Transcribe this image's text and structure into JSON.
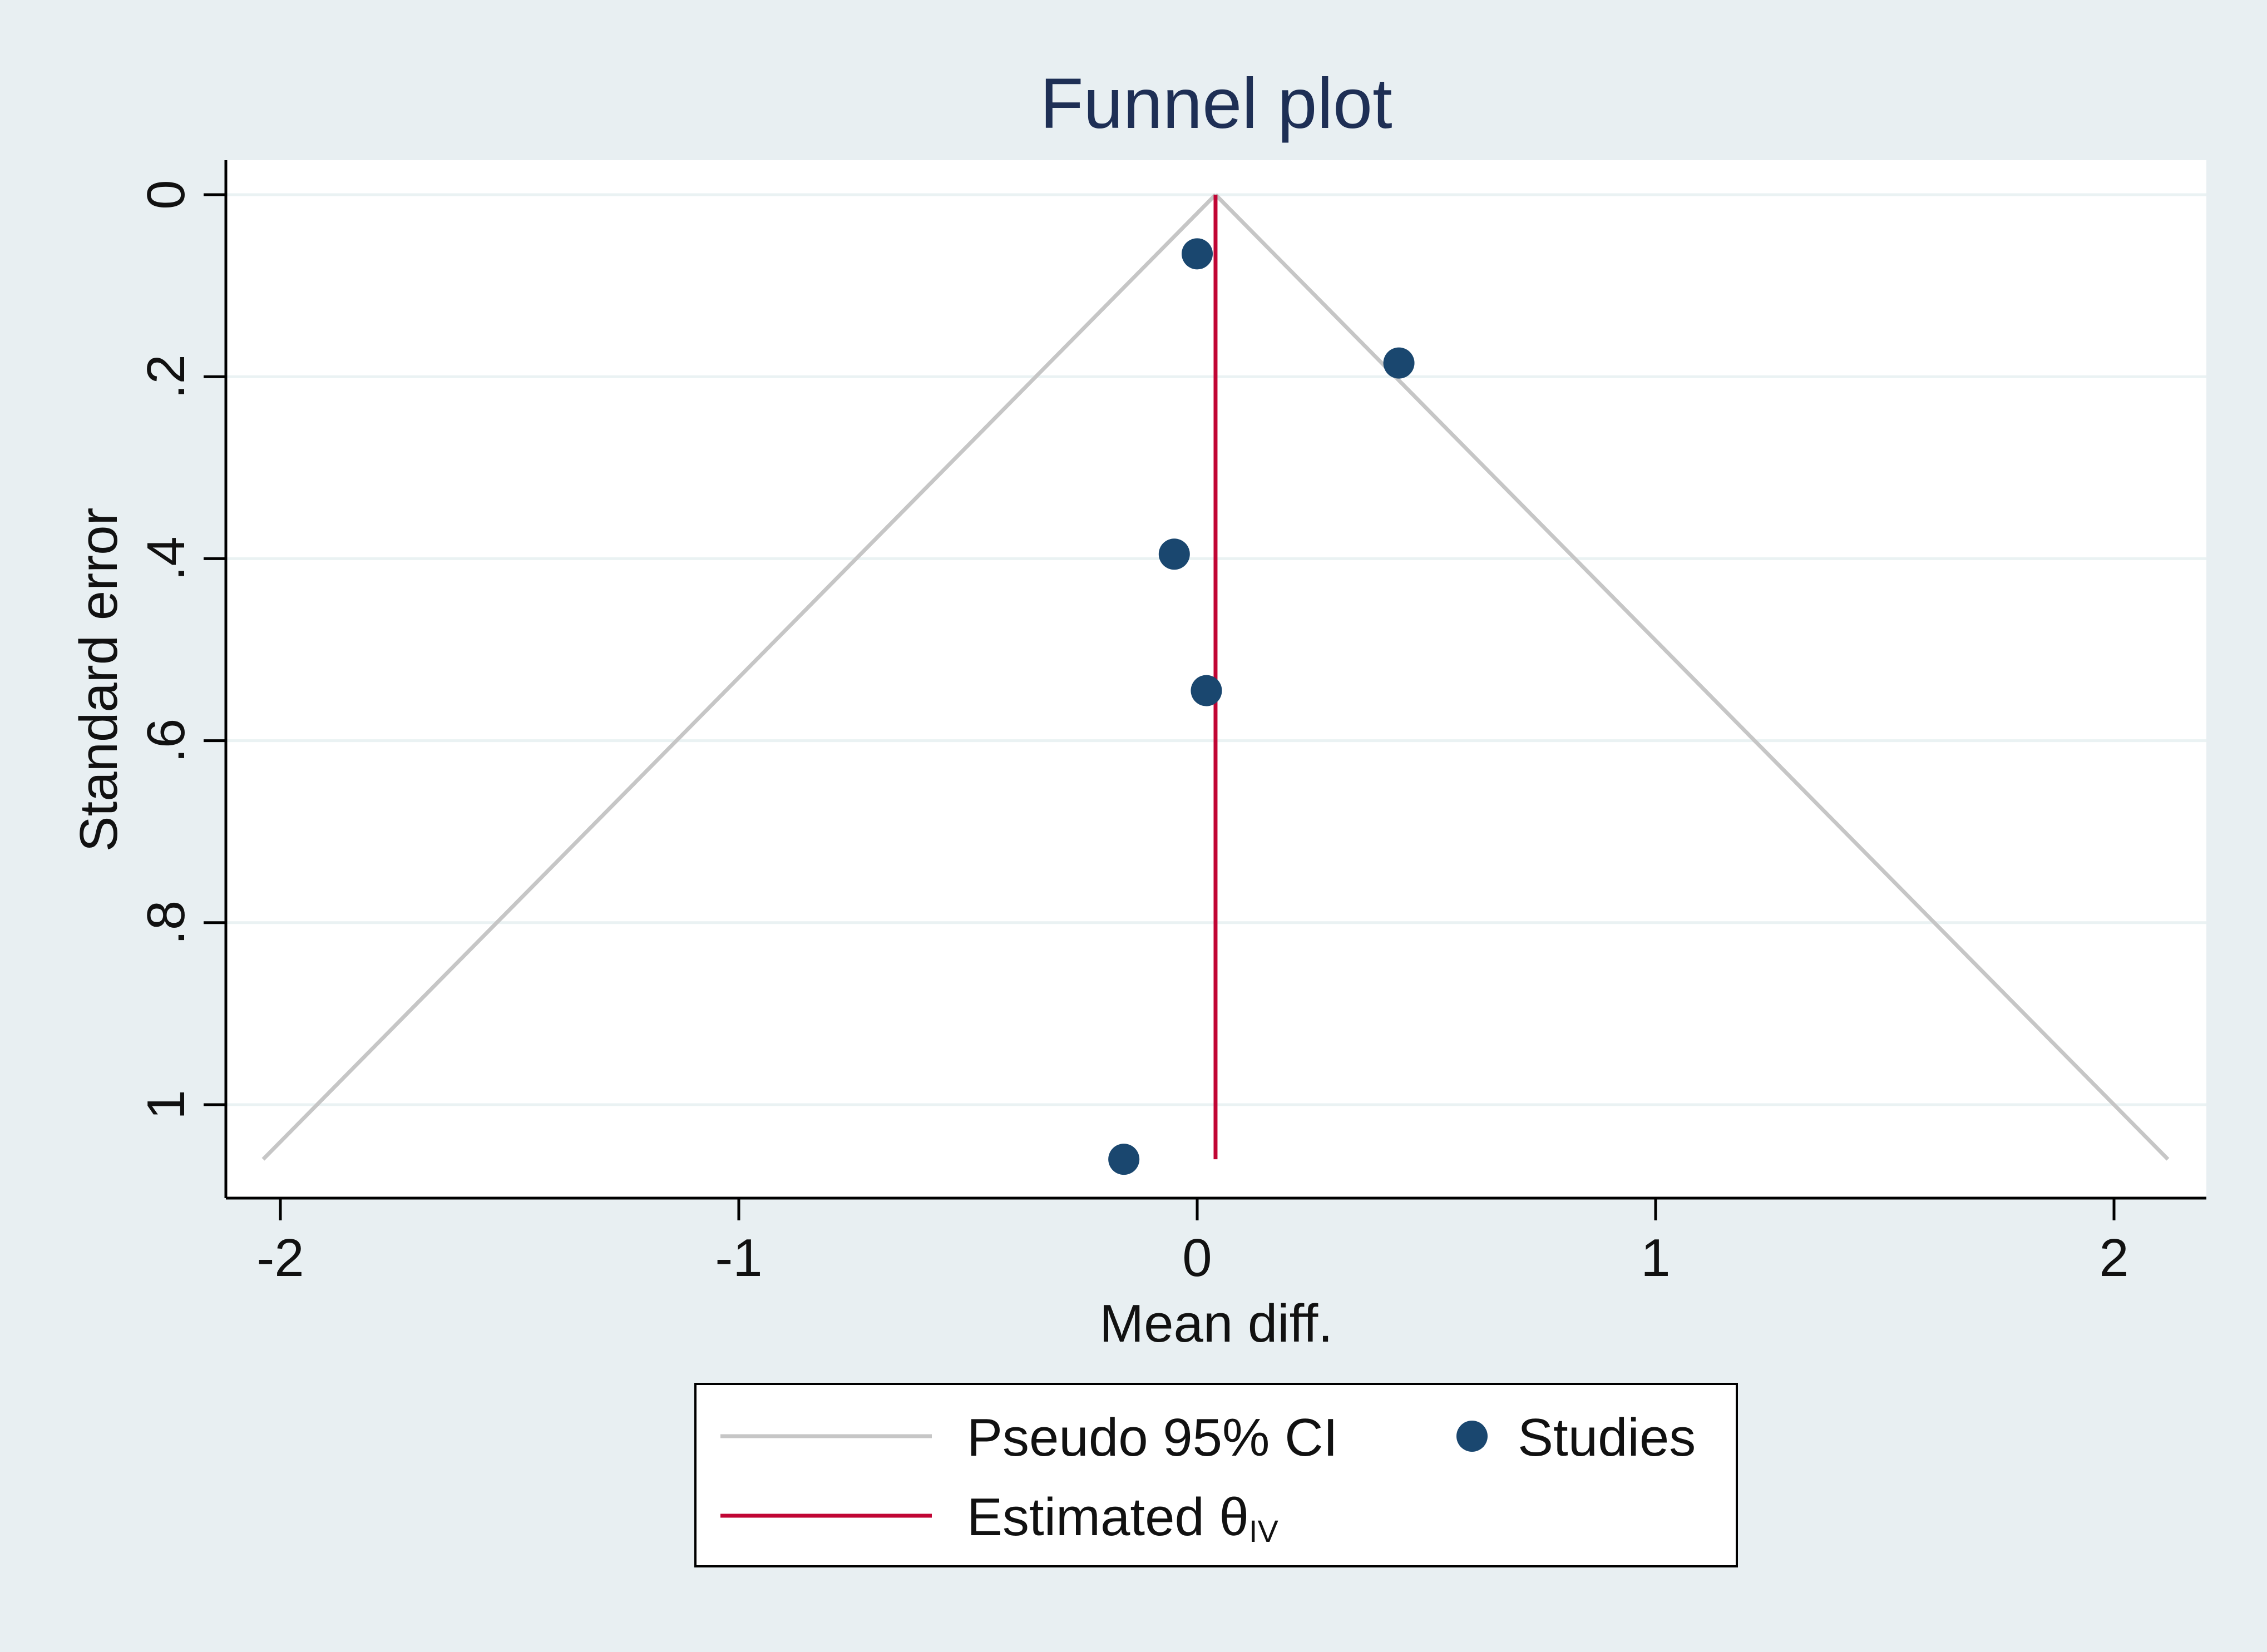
{
  "chart_data": {
    "type": "scatter",
    "title": "Funnel plot",
    "xlabel": "Mean diff.",
    "ylabel": "Standard error",
    "xlim": [
      -2.1,
      2.2
    ],
    "ylim": [
      0,
      1.1
    ],
    "y_reversed": true,
    "xticks": [
      -2,
      -1,
      0,
      1,
      2
    ],
    "xtick_labels": [
      "-2",
      "-1",
      "0",
      "1",
      "2"
    ],
    "yticks": [
      0,
      0.2,
      0.4,
      0.6,
      0.8,
      1
    ],
    "ytick_labels": [
      "0",
      ".2",
      ".4",
      ".6",
      ".8",
      "1"
    ],
    "grid": "horizontal",
    "studies": {
      "name": "Studies",
      "color": "#1a476f",
      "points": [
        {
          "x": 0.0,
          "y": 0.065
        },
        {
          "x": 0.44,
          "y": 0.185
        },
        {
          "x": -0.05,
          "y": 0.395
        },
        {
          "x": 0.02,
          "y": 0.545
        },
        {
          "x": -0.16,
          "y": 1.06
        }
      ]
    },
    "estimate": {
      "name": "Estimated θ",
      "subscript": "IV",
      "color": "#c10534",
      "x": 0.04,
      "ymax": 1.06
    },
    "ci": {
      "name": "Pseudo 95% CI",
      "color": "#c6c6c6",
      "center": 0.04,
      "z": 1.96,
      "ymax": 1.06
    },
    "legend": {
      "position": "bottom",
      "entries": [
        "Pseudo 95% CI",
        "Studies",
        "Estimated θ"
      ]
    }
  }
}
